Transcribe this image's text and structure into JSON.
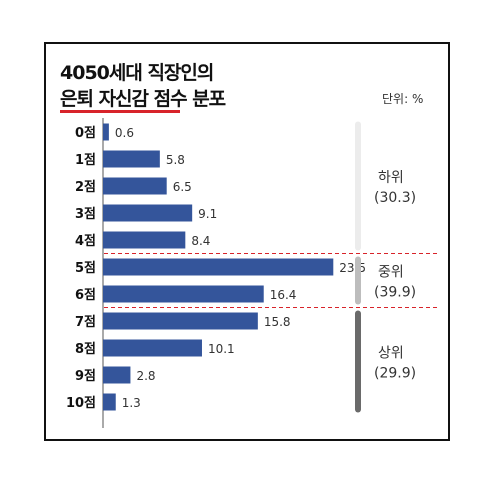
{
  "header": {
    "title_line1": "4050세대 직장인의",
    "title_line2": "은퇴 자신감 점수 분포",
    "unit": "단위: %"
  },
  "colors": {
    "bar": "#34559b",
    "low_bracket": "#ececec",
    "mid_bracket": "#bdbdbd",
    "high_bracket": "#6a6a6a",
    "divider": "#d8232a"
  },
  "chart_data": {
    "type": "bar",
    "orientation": "horizontal",
    "title": "4050세대 직장인의 은퇴 자신감 점수 분포",
    "unit": "단위: %",
    "categories": [
      "0점",
      "1점",
      "2점",
      "3점",
      "4점",
      "5점",
      "6점",
      "7점",
      "8점",
      "9점",
      "10점"
    ],
    "values": [
      0.6,
      5.8,
      6.5,
      9.1,
      8.4,
      23.5,
      16.4,
      15.8,
      10.1,
      2.8,
      1.3
    ],
    "value_labels": [
      "0.6",
      "5.8",
      "6.5",
      "9.1",
      "8.4",
      "23.5",
      "16.4",
      "15.8",
      "10.1",
      "2.8",
      "1.3"
    ],
    "xlim": [
      0,
      25
    ],
    "groups": [
      {
        "name": "하위",
        "total": "(30.3)",
        "from": 0,
        "to": 4
      },
      {
        "name": "중위",
        "total": "(39.9)",
        "from": 5,
        "to": 6
      },
      {
        "name": "상위",
        "total": "(29.9)",
        "from": 7,
        "to": 10
      }
    ]
  }
}
